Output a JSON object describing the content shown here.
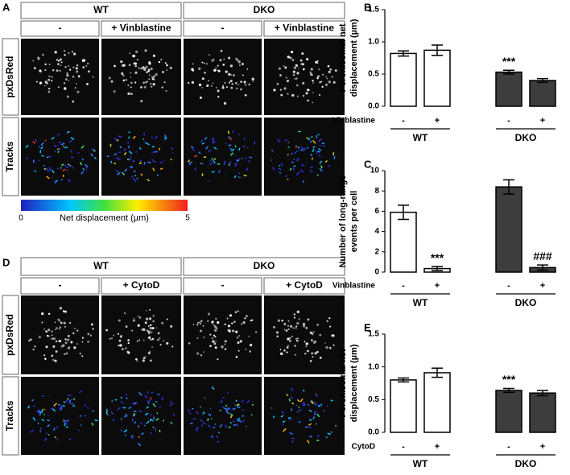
{
  "figure_panels": [
    {
      "label": "A",
      "groups": [
        "WT",
        "DKO"
      ],
      "conditions": [
        "-",
        "+ Vinblastine",
        "-",
        "+ Vinblastine"
      ],
      "rows": [
        "pxDsRed",
        "Tracks"
      ],
      "colorbar": {
        "label": "Net displacement (µm)",
        "lim": [
          0,
          5
        ],
        "ticks": [
          0,
          5
        ]
      }
    },
    {
      "label": "D",
      "groups": [
        "WT",
        "DKO"
      ],
      "conditions": [
        "-",
        "+ CytoD",
        "-",
        "+ CytoD"
      ],
      "rows": [
        "pxDsRed",
        "Tracks"
      ]
    }
  ],
  "chart_data": [
    {
      "type": "bar",
      "label": "B",
      "y_label": [
        "Peroxisomal net",
        "displacement (µm)"
      ],
      "treatment": "Vinblastine",
      "categories": [
        "-",
        "+",
        "-",
        "+"
      ],
      "groups": [
        "WT",
        "DKO"
      ],
      "values": [
        0.82,
        0.87,
        0.53,
        0.4
      ],
      "errors": [
        0.04,
        0.08,
        0.03,
        0.03
      ],
      "colors": [
        "#ffffff",
        "#ffffff",
        "#3d3d3d",
        "#3d3d3d"
      ],
      "significance": [
        null,
        null,
        "***",
        null
      ],
      "ylim": [
        0,
        1.5
      ],
      "yticks": [
        {
          "value": 0,
          "label": "0.0"
        },
        0.5,
        {
          "value": 1,
          "label": "1.0"
        },
        1.5
      ]
    },
    {
      "type": "bar",
      "label": "C",
      "y_label": [
        "Number of long-range",
        "events per cell"
      ],
      "treatment": "Vinblastine",
      "categories": [
        "-",
        "+",
        "-",
        "+"
      ],
      "groups": [
        "WT",
        "DKO"
      ],
      "values": [
        5.9,
        0.35,
        8.4,
        0.45
      ],
      "errors": [
        0.7,
        0.2,
        0.7,
        0.25
      ],
      "colors": [
        "#ffffff",
        "#ffffff",
        "#3d3d3d",
        "#3d3d3d"
      ],
      "significance": [
        null,
        "***",
        null,
        "###"
      ],
      "ylim": [
        0,
        10
      ],
      "yticks": [
        0,
        2,
        4,
        6,
        8,
        10
      ]
    },
    {
      "type": "bar",
      "label": "E",
      "y_label": [
        "Peroxisomal net",
        "displacement (µm)"
      ],
      "treatment": "CytoD",
      "categories": [
        "-",
        "+",
        "-",
        "+"
      ],
      "groups": [
        "WT",
        "DKO"
      ],
      "values": [
        0.8,
        0.91,
        0.64,
        0.6
      ],
      "errors": [
        0.03,
        0.07,
        0.03,
        0.04
      ],
      "colors": [
        "#ffffff",
        "#ffffff",
        "#3d3d3d",
        "#3d3d3d"
      ],
      "significance": [
        null,
        null,
        "***",
        null
      ],
      "ylim": [
        0,
        1.5
      ],
      "yticks": [
        {
          "value": 0,
          "label": "0.0"
        },
        0.5,
        {
          "value": 1,
          "label": "1.0"
        },
        1.5
      ]
    }
  ]
}
